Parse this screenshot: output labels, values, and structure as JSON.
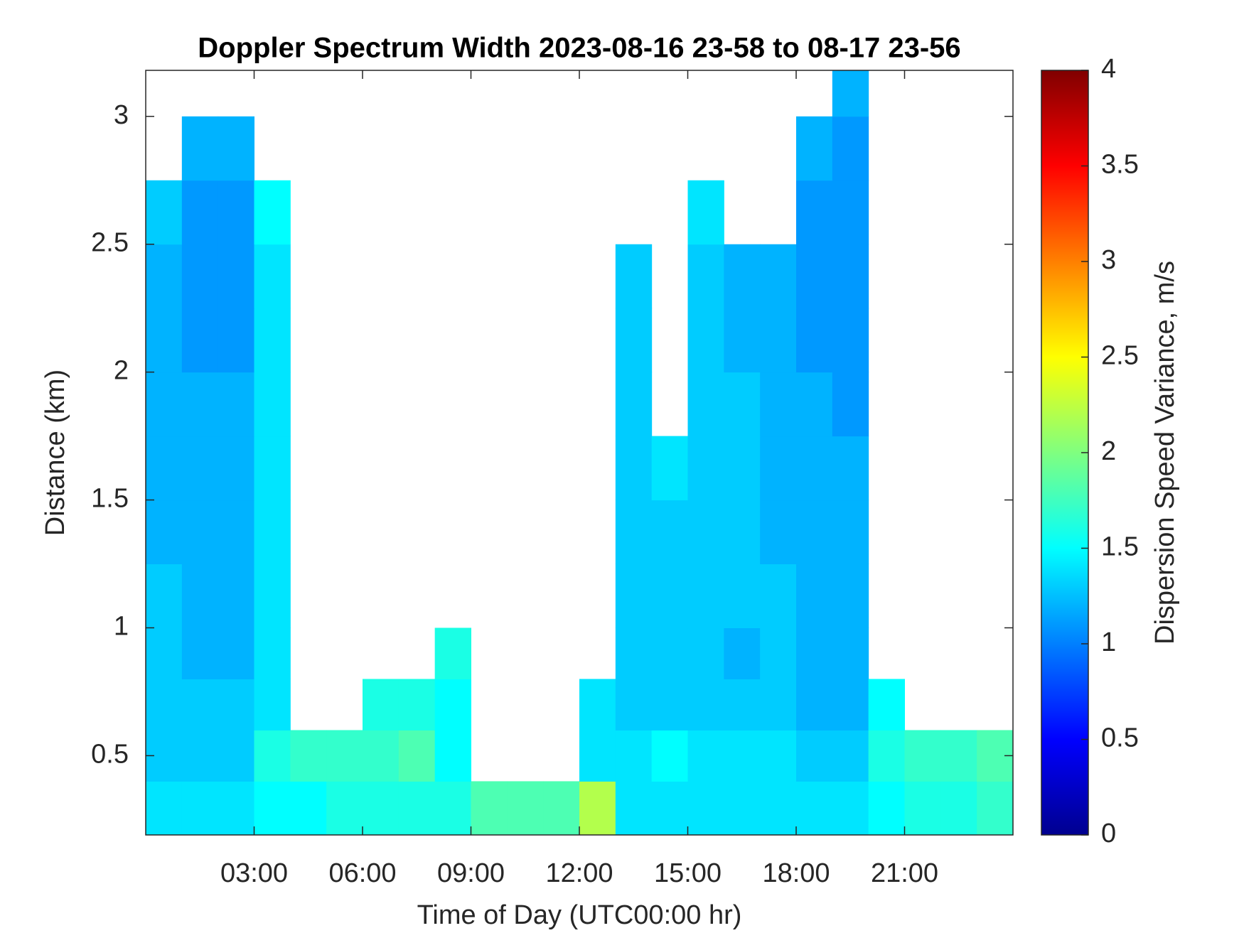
{
  "chart_data": {
    "type": "heatmap",
    "title": "Doppler Spectrum Width 2023-08-16 23-58 to 08-17 23-56",
    "xlabel": "Time of Day (UTC00:00 hr)",
    "ylabel": "Distance (km)",
    "colorbar_label": "Dispersion Speed Variance, m/s",
    "colormap": "jet",
    "xlim": [
      0,
      24
    ],
    "xticks": [
      {
        "value": 3,
        "label": "03:00"
      },
      {
        "value": 6,
        "label": "06:00"
      },
      {
        "value": 9,
        "label": "09:00"
      },
      {
        "value": 12,
        "label": "12:00"
      },
      {
        "value": 15,
        "label": "15:00"
      },
      {
        "value": 18,
        "label": "18:00"
      },
      {
        "value": 21,
        "label": "21:00"
      }
    ],
    "ylim": [
      0.19,
      3.18
    ],
    "yticks": [
      0.5,
      1,
      1.5,
      2,
      2.5,
      3
    ],
    "clim": [
      0,
      4
    ],
    "cticks": [
      0,
      0.5,
      1,
      1.5,
      2,
      2.5,
      3,
      3.5,
      4
    ],
    "xbins": [
      0,
      1,
      2,
      3,
      4,
      5,
      6,
      7,
      8,
      9,
      10,
      11,
      12,
      13,
      14,
      15,
      16,
      17,
      18,
      19,
      20,
      21,
      22,
      23,
      24
    ],
    "ybins": [
      0.19,
      0.4,
      0.6,
      0.8,
      1.0,
      1.25,
      1.5,
      1.75,
      2.0,
      2.25,
      2.5,
      2.75,
      3.0,
      3.18
    ],
    "z": [
      [
        1.4,
        1.4,
        1.4,
        1.5,
        1.5,
        1.6,
        1.6,
        1.6,
        1.6,
        1.8,
        1.8,
        1.8,
        2.2,
        1.4,
        1.4,
        1.4,
        1.4,
        1.4,
        1.4,
        1.4,
        1.5,
        1.6,
        1.6,
        1.7
      ],
      [
        1.3,
        1.3,
        1.3,
        1.6,
        1.7,
        1.7,
        1.7,
        1.8,
        1.5,
        null,
        null,
        null,
        1.4,
        1.4,
        1.5,
        1.4,
        1.4,
        1.4,
        1.3,
        1.3,
        1.6,
        1.7,
        1.7,
        1.8
      ],
      [
        1.3,
        1.3,
        1.3,
        1.4,
        null,
        null,
        1.6,
        1.6,
        1.5,
        null,
        null,
        null,
        1.4,
        1.3,
        1.3,
        1.3,
        1.3,
        1.3,
        1.2,
        1.2,
        1.5,
        null,
        null,
        null
      ],
      [
        1.3,
        1.2,
        1.2,
        1.4,
        null,
        null,
        null,
        null,
        1.6,
        null,
        null,
        null,
        null,
        1.3,
        1.3,
        1.3,
        1.2,
        1.3,
        1.2,
        1.2,
        null,
        null,
        null,
        null
      ],
      [
        1.3,
        1.2,
        1.2,
        1.4,
        null,
        null,
        null,
        null,
        null,
        null,
        null,
        null,
        null,
        1.3,
        1.3,
        1.3,
        1.3,
        1.3,
        1.2,
        1.2,
        null,
        null,
        null,
        null
      ],
      [
        1.2,
        1.2,
        1.2,
        1.4,
        null,
        null,
        null,
        null,
        null,
        null,
        null,
        null,
        null,
        1.3,
        1.3,
        1.3,
        1.3,
        1.2,
        1.2,
        1.2,
        null,
        null,
        null,
        null
      ],
      [
        1.2,
        1.2,
        1.2,
        1.4,
        null,
        null,
        null,
        null,
        null,
        null,
        null,
        null,
        null,
        1.3,
        1.4,
        1.3,
        1.3,
        1.2,
        1.2,
        1.2,
        null,
        null,
        null,
        null
      ],
      [
        1.2,
        1.2,
        1.2,
        1.4,
        null,
        null,
        null,
        null,
        null,
        null,
        null,
        null,
        null,
        1.3,
        null,
        1.3,
        1.3,
        1.2,
        1.2,
        1.1,
        null,
        null,
        null,
        null
      ],
      [
        1.2,
        1.1,
        1.1,
        1.4,
        null,
        null,
        null,
        null,
        null,
        null,
        null,
        null,
        null,
        1.3,
        null,
        1.3,
        1.2,
        1.2,
        1.1,
        1.1,
        null,
        null,
        null,
        null
      ],
      [
        1.2,
        1.1,
        1.1,
        1.4,
        null,
        null,
        null,
        null,
        null,
        null,
        null,
        null,
        null,
        1.3,
        null,
        1.3,
        1.2,
        1.2,
        1.1,
        1.1,
        null,
        null,
        null,
        null
      ],
      [
        1.3,
        1.1,
        1.1,
        1.5,
        null,
        null,
        null,
        null,
        null,
        null,
        null,
        null,
        null,
        null,
        null,
        1.4,
        null,
        null,
        1.1,
        1.1,
        null,
        null,
        null,
        null
      ],
      [
        null,
        1.2,
        1.2,
        null,
        null,
        null,
        null,
        null,
        null,
        null,
        null,
        null,
        null,
        null,
        null,
        null,
        null,
        null,
        1.2,
        1.1,
        null,
        null,
        null,
        null
      ],
      [
        null,
        null,
        null,
        null,
        null,
        null,
        null,
        null,
        null,
        null,
        null,
        null,
        null,
        null,
        null,
        null,
        null,
        null,
        null,
        1.2,
        null,
        null,
        null,
        null
      ]
    ]
  }
}
